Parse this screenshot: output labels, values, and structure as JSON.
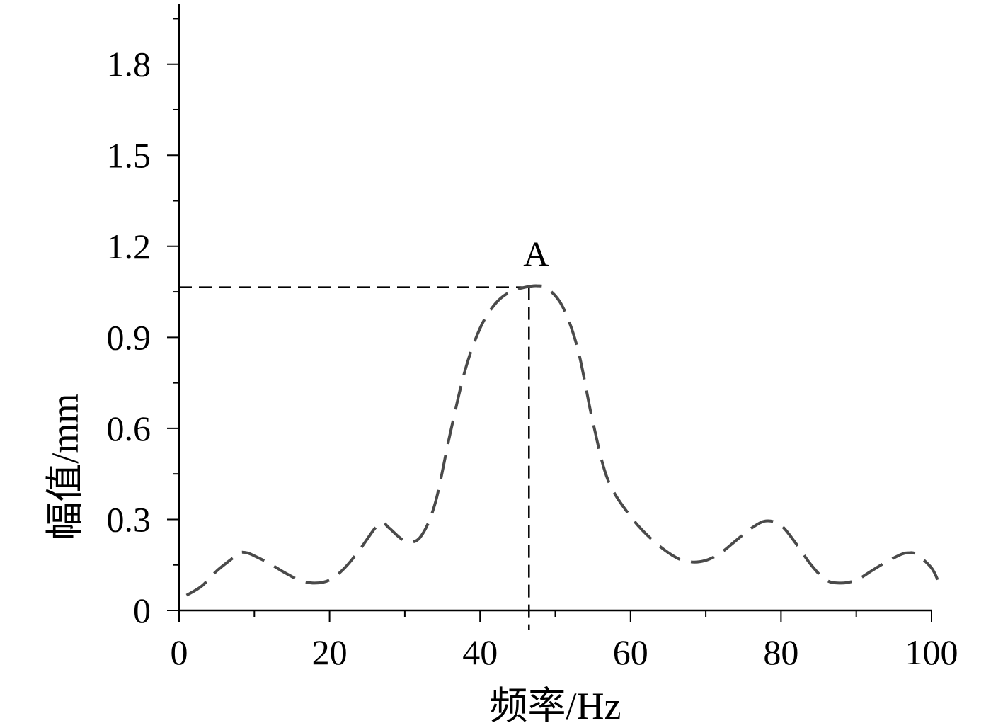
{
  "chart_data": {
    "type": "line",
    "xlabel": "频率/Hz",
    "ylabel": "幅值/mm",
    "xlim": [
      0,
      100
    ],
    "ylim": [
      0,
      2
    ],
    "x_ticks": [
      0,
      20,
      40,
      60,
      80,
      100
    ],
    "x_tick_labels": [
      "0",
      "20",
      "40",
      "60",
      "80",
      "100"
    ],
    "y_ticks": [
      0,
      0.3,
      0.6,
      0.9,
      1.2,
      1.5,
      1.8
    ],
    "y_tick_labels": [
      "0",
      "0.3",
      "0.6",
      "0.9",
      "1.2",
      "1.5",
      "1.8"
    ],
    "grid": false,
    "series": [
      {
        "x": [
          1,
          3,
          5,
          7,
          8,
          9,
          10,
          12,
          14,
          16,
          18,
          20,
          22,
          24,
          26,
          27,
          28,
          30,
          32,
          34,
          36,
          38,
          40,
          42,
          44,
          46,
          47.5,
          49,
          51,
          53,
          55,
          57,
          60,
          63,
          66,
          68,
          70,
          72,
          74,
          76,
          78,
          80,
          82,
          84,
          86,
          88,
          90,
          92,
          94,
          96,
          97,
          98,
          100,
          101
        ],
        "y": [
          0.05,
          0.08,
          0.13,
          0.17,
          0.19,
          0.19,
          0.18,
          0.155,
          0.125,
          0.1,
          0.09,
          0.1,
          0.14,
          0.2,
          0.27,
          0.29,
          0.27,
          0.23,
          0.24,
          0.35,
          0.58,
          0.79,
          0.93,
          1.01,
          1.05,
          1.065,
          1.07,
          1.06,
          1.0,
          0.86,
          0.62,
          0.43,
          0.31,
          0.23,
          0.175,
          0.16,
          0.165,
          0.19,
          0.23,
          0.27,
          0.295,
          0.28,
          0.22,
          0.15,
          0.1,
          0.09,
          0.1,
          0.13,
          0.16,
          0.185,
          0.19,
          0.185,
          0.14,
          0.09
        ]
      }
    ],
    "annotations": [
      {
        "label": "A",
        "x": 46.5,
        "y": 1.065
      }
    ]
  }
}
